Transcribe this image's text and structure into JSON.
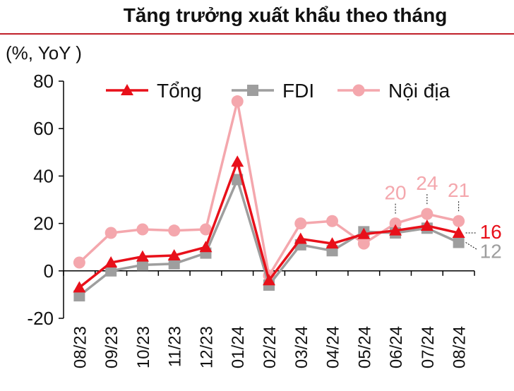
{
  "chart_data": {
    "type": "line",
    "title": "Tăng trưởng xuất khẩu theo tháng",
    "ylabel": "(%, YoY )",
    "xlabel": "",
    "ylim": [
      -20,
      80
    ],
    "yticks": [
      -20,
      0,
      20,
      40,
      60,
      80
    ],
    "categories": [
      "08/23",
      "09/23",
      "10/23",
      "11/23",
      "12/23",
      "01/24",
      "02/24",
      "03/24",
      "04/24",
      "05/24",
      "06/24",
      "07/24",
      "08/24"
    ],
    "legend_position": "top",
    "series": [
      {
        "name": "Tổng",
        "color": "#e8101a",
        "marker": "triangle",
        "values": [
          -7,
          3.5,
          6,
          6.5,
          10,
          46,
          -4,
          13.5,
          11.5,
          15.5,
          17,
          19,
          16
        ]
      },
      {
        "name": "FDI",
        "color": "#9e9e9e",
        "marker": "square",
        "values": [
          -10.5,
          0,
          2.5,
          3,
          7.5,
          38.5,
          -6,
          11,
          8.5,
          16.5,
          16,
          18,
          12
        ]
      },
      {
        "name": "Nội địa",
        "color": "#f4a7ad",
        "marker": "circle",
        "values": [
          3.5,
          16,
          17.5,
          17,
          17.5,
          71.5,
          -2,
          20,
          21,
          11.5,
          20,
          24,
          21
        ]
      }
    ],
    "annotations": [
      {
        "text": "20",
        "category": "06/24",
        "series": "Nội địa",
        "color": "#f4a7ad"
      },
      {
        "text": "24",
        "category": "07/24",
        "series": "Nội địa",
        "color": "#f4a7ad"
      },
      {
        "text": "21",
        "category": "08/24",
        "series": "Nội địa",
        "color": "#f4a7ad"
      },
      {
        "text": "16",
        "category": "08/24",
        "series": "Tổng",
        "color": "#e8101a"
      },
      {
        "text": "12",
        "category": "08/24",
        "series": "FDI",
        "color": "#9e9e9e"
      }
    ],
    "grid": false,
    "accent_color": "#c0202a"
  }
}
